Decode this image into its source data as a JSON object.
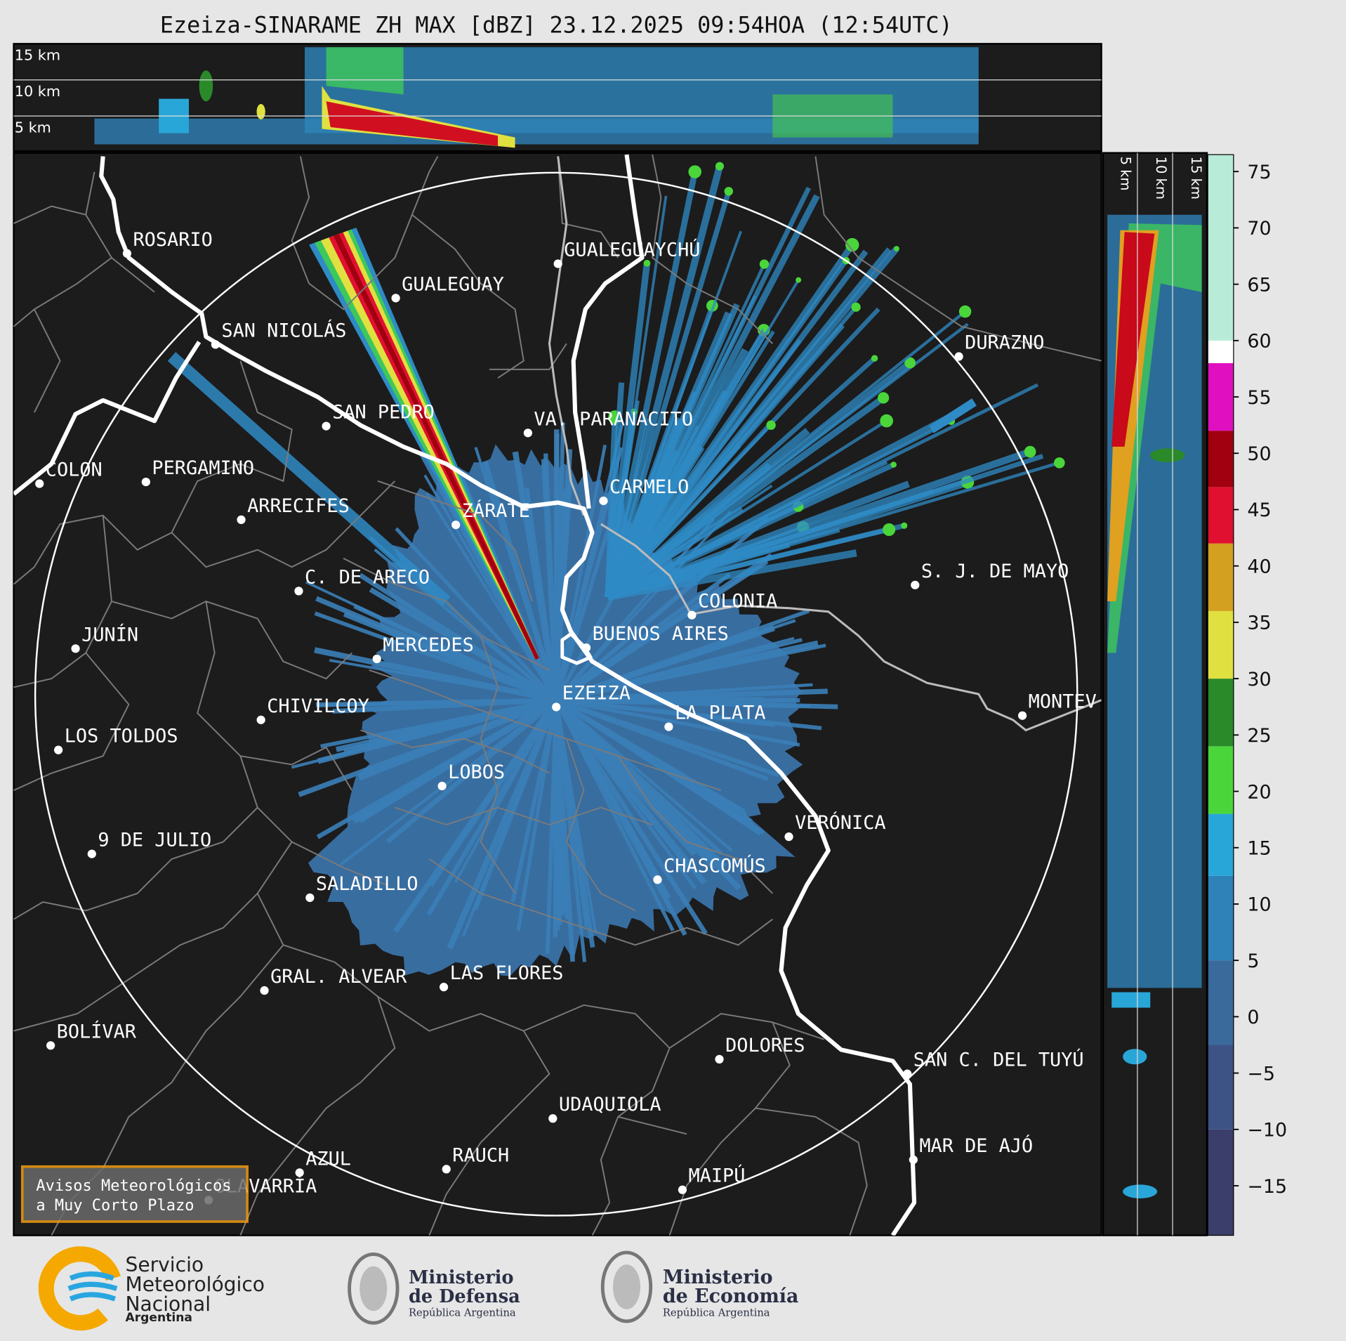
{
  "title": "Ezeiza-SINARAME ZH MAX [dBZ] 23.12.2025 09:54HOA (12:54UTC)",
  "height_labels": [
    "15 km",
    "10 km",
    "5 km"
  ],
  "side_height_labels": [
    "5 km",
    "10 km",
    "15 km"
  ],
  "cities": [
    "ROSARIO",
    "GUALEGUAYCHÚ",
    "GUALEGUAY",
    "SAN NICOLÁS",
    "DURAZNO",
    "SAN PEDRO",
    "VA. PARANACITO",
    "COLON",
    "PERGAMINO",
    "CARMELO",
    "ARRECIFES",
    "ZÁRATE",
    "S. J. DE MAYO",
    "C. DE ARECO",
    "COLONIA",
    "BUENOS AIRES",
    "JUNÍN",
    "MERCEDES",
    "EZEIZA",
    "MONTEV",
    "CHIVILCOY",
    "LA PLATA",
    "LOS TOLDOS",
    "LOBOS",
    "VERÓNICA",
    "9 DE JULIO",
    "CHASCOMÚS",
    "SALADILLO",
    "GRAL. ALVEAR",
    "LAS FLORES",
    "BOLÍVAR",
    "DOLORES",
    "SAN C. DEL TUYÚ",
    "UDAQUIOLA",
    "MAR DE AJÓ",
    "AZUL",
    "RAUCH",
    "MAIPÚ",
    "OLAVARRÍA"
  ],
  "colorbar": {
    "lim": [
      -19.4,
      76.5
    ],
    "ticks": [
      75,
      70,
      65,
      60,
      55,
      50,
      45,
      40,
      35,
      30,
      25,
      20,
      15,
      10,
      5,
      0,
      {
        "value": -5,
        "label": "−5"
      },
      {
        "value": -10,
        "label": "−10"
      },
      {
        "value": -15,
        "label": "−15"
      }
    ],
    "bands": [
      {
        "from": -19.4,
        "to": -10,
        "color": "#3b3d6b"
      },
      {
        "from": -10,
        "to": -2.5,
        "color": "#3d5386"
      },
      {
        "from": -2.5,
        "to": 5,
        "color": "#3a6a9c"
      },
      {
        "from": 5,
        "to": 12.5,
        "color": "#2f82b8"
      },
      {
        "from": 12.5,
        "to": 18,
        "color": "#29a6d8"
      },
      {
        "from": 18,
        "to": 24,
        "color": "#4ad63a"
      },
      {
        "from": 24,
        "to": 30,
        "color": "#2a8a2a"
      },
      {
        "from": 30,
        "to": 36,
        "color": "#e0e040"
      },
      {
        "from": 36,
        "to": 42,
        "color": "#d4a020"
      },
      {
        "from": 42,
        "to": 47,
        "color": "#e01030"
      },
      {
        "from": 47,
        "to": 52,
        "color": "#a00010"
      },
      {
        "from": 52,
        "to": 58,
        "color": "#e010c0"
      },
      {
        "from": 58,
        "to": 60,
        "color": "#ffffff"
      },
      {
        "from": 60,
        "to": 76.5,
        "color": "#b8ecd8"
      }
    ]
  },
  "notice": [
    "Avisos Meteorológicos",
    "a Muy Corto Plazo"
  ],
  "logos": {
    "smn": [
      "Servicio",
      "Meteorológico",
      "Nacional",
      "Argentina"
    ],
    "defensa": [
      "Ministerio",
      "de Defensa",
      "República Argentina"
    ],
    "economia": [
      "Ministerio",
      "de Economía",
      "República Argentina"
    ]
  }
}
